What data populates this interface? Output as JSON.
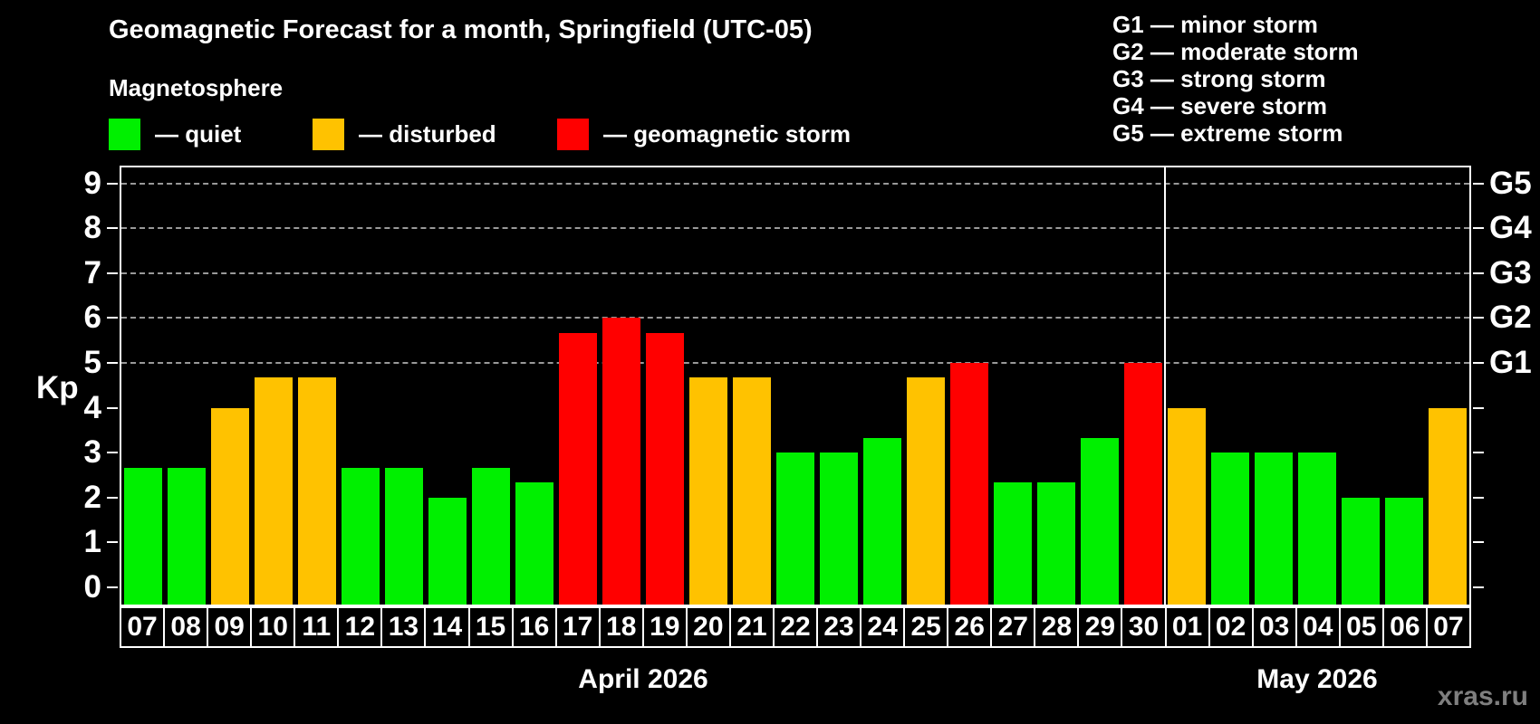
{
  "header": {
    "title": "Geomagnetic Forecast for a month, Springfield (UTC-05)",
    "subtitle": "Magnetosphere"
  },
  "legend": {
    "items": [
      {
        "key": "quiet",
        "label": "— quiet",
        "color": "#00f000"
      },
      {
        "key": "disturbed",
        "label": "— disturbed",
        "color": "#ffc200"
      },
      {
        "key": "storm",
        "label": "— geomagnetic storm",
        "color": "#ff0000"
      }
    ]
  },
  "g_legend": {
    "items": [
      "G1 — minor storm",
      "G2 — moderate storm",
      "G3 — strong storm",
      "G4 — severe storm",
      "G5 — extreme storm"
    ]
  },
  "watermark": "xras.ru",
  "chart_data": {
    "type": "bar",
    "title": "Geomagnetic Forecast for a month, Springfield (UTC-05)",
    "ylabel": "Kp",
    "ylim": [
      0,
      9
    ],
    "y_ticks": [
      0,
      1,
      2,
      3,
      4,
      5,
      6,
      7,
      8,
      9
    ],
    "gridlines_at": [
      5,
      6,
      7,
      8,
      9
    ],
    "grid": "dashed horizontal at storm levels only",
    "legend_position": "top",
    "right_axis": [
      {
        "kp": 5,
        "label": "G1"
      },
      {
        "kp": 6,
        "label": "G2"
      },
      {
        "kp": 7,
        "label": "G3"
      },
      {
        "kp": 8,
        "label": "G4"
      },
      {
        "kp": 9,
        "label": "G5"
      }
    ],
    "categories": [
      "07",
      "08",
      "09",
      "10",
      "11",
      "12",
      "13",
      "14",
      "15",
      "16",
      "17",
      "18",
      "19",
      "20",
      "21",
      "22",
      "23",
      "24",
      "25",
      "26",
      "27",
      "28",
      "29",
      "30",
      "01",
      "02",
      "03",
      "04",
      "05",
      "06",
      "07"
    ],
    "values": [
      2.67,
      2.67,
      4.0,
      4.67,
      4.67,
      2.67,
      2.67,
      2.0,
      2.67,
      2.33,
      5.67,
      6.0,
      5.67,
      4.67,
      4.67,
      3.0,
      3.0,
      3.33,
      4.67,
      5.0,
      2.33,
      2.33,
      3.33,
      5.0,
      4.0,
      3.0,
      3.0,
      3.0,
      2.0,
      2.0,
      4.0
    ],
    "status": [
      "quiet",
      "quiet",
      "disturbed",
      "disturbed",
      "disturbed",
      "quiet",
      "quiet",
      "quiet",
      "quiet",
      "quiet",
      "storm",
      "storm",
      "storm",
      "disturbed",
      "disturbed",
      "quiet",
      "quiet",
      "quiet",
      "disturbed",
      "storm",
      "quiet",
      "quiet",
      "quiet",
      "storm",
      "disturbed",
      "quiet",
      "quiet",
      "quiet",
      "quiet",
      "quiet",
      "disturbed"
    ],
    "colors": {
      "quiet": "#00f000",
      "disturbed": "#ffc200",
      "storm": "#ff0000"
    },
    "months": [
      {
        "label": "April 2026",
        "start_index": 0,
        "end_index": 23
      },
      {
        "label": "May 2026",
        "start_index": 24,
        "end_index": 30
      }
    ]
  }
}
